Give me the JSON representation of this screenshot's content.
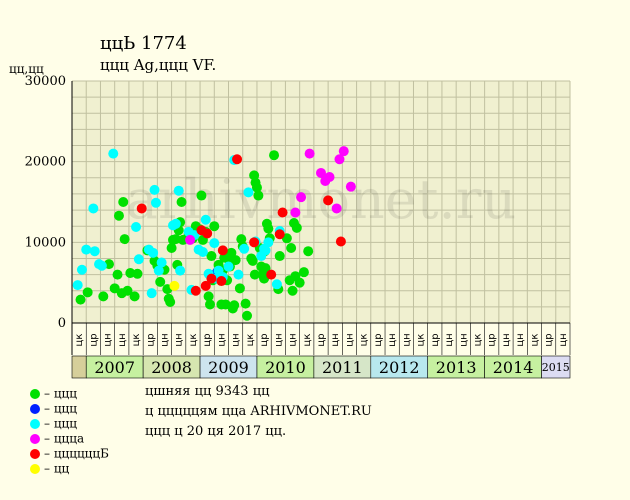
{
  "title": "ццЬ 1774",
  "subtitle": "ццц Ag,ццц VF.",
  "y_unit": "цц,цц",
  "watermark": "arhivmonet.ru",
  "notes": [
    "цшняя цц 9343 цц",
    "ц цццццям ццa ARHIVMONET.RU",
    "ццц ц 20 ця 2017 цц."
  ],
  "legend": [
    {
      "label": "– ццц",
      "color": "#00e000"
    },
    {
      "label": "– ццц",
      "color": "#0020ff"
    },
    {
      "label": "– ццц",
      "color": "#00ffff"
    },
    {
      "label": "– ццца",
      "color": "#ff00ff"
    },
    {
      "label": "– ццццццБ",
      "color": "#ff0000"
    },
    {
      "label": "– цц",
      "color": "#ffff00"
    }
  ],
  "colors": {
    "background": "#fffee8",
    "plot_bg": "#f0f0d0",
    "grid": "#c0c0a0"
  },
  "chart_data": {
    "type": "scatter",
    "title": "ццЬ 1774",
    "ylabel": "цц,цц",
    "ylim": [
      0,
      30000
    ],
    "yticks": [
      0,
      10000,
      20000,
      30000
    ],
    "grid": true,
    "legend_position": "bottom-left",
    "x_tick_labels": [
      "цк",
      "цр",
      "цн",
      "цн",
      "цк",
      "цр",
      "цн",
      "цн",
      "цк",
      "цр",
      "цн",
      "цн",
      "цк",
      "цр",
      "цн",
      "цн",
      "цк",
      "цр",
      "цн",
      "цн",
      "цк",
      "цр",
      "цн",
      "цн",
      "цк",
      "цр",
      "цн",
      "цн",
      "цк",
      "цр",
      "цн",
      "цн",
      "цк",
      "цр",
      "цн"
    ],
    "years": [
      {
        "label": "",
        "start": 0,
        "count": 1,
        "color": "#d6cf9a"
      },
      {
        "label": "2007",
        "start": 1,
        "count": 4,
        "color": "#c6f0a0"
      },
      {
        "label": "2008",
        "start": 5,
        "count": 4,
        "color": "#d6e6b0"
      },
      {
        "label": "2009",
        "start": 9,
        "count": 4,
        "color": "#cde4ee"
      },
      {
        "label": "2010",
        "start": 13,
        "count": 4,
        "color": "#c6f0a0"
      },
      {
        "label": "2011",
        "start": 17,
        "count": 4,
        "color": "#d6e6c8"
      },
      {
        "label": "2012",
        "start": 21,
        "count": 4,
        "color": "#b8e8ee"
      },
      {
        "label": "2013",
        "start": 25,
        "count": 4,
        "color": "#c6f0a0"
      },
      {
        "label": "2014",
        "start": 29,
        "count": 4,
        "color": "#c6f0a0"
      },
      {
        "label": "2015",
        "start": 33,
        "count": 2,
        "color": "#dcdcf2"
      }
    ],
    "series": [
      {
        "key": "green",
        "color": "#00e000",
        "points": [
          [
            0.6,
            2900
          ],
          [
            1.1,
            3800
          ],
          [
            2.2,
            3300
          ],
          [
            2.6,
            7300
          ],
          [
            3.0,
            4300
          ],
          [
            3.2,
            6000
          ],
          [
            3.3,
            13300
          ],
          [
            3.5,
            3700
          ],
          [
            3.6,
            15000
          ],
          [
            3.7,
            10400
          ],
          [
            3.9,
            4000
          ],
          [
            4.1,
            6200
          ],
          [
            4.4,
            3300
          ],
          [
            4.6,
            6100
          ],
          [
            5.3,
            9000
          ],
          [
            5.8,
            7700
          ],
          [
            6.0,
            7100
          ],
          [
            6.2,
            5100
          ],
          [
            6.5,
            6600
          ],
          [
            6.7,
            4200
          ],
          [
            6.8,
            3000
          ],
          [
            6.9,
            2600
          ],
          [
            7.0,
            9300
          ],
          [
            7.1,
            10300
          ],
          [
            7.3,
            10400
          ],
          [
            7.4,
            7200
          ],
          [
            7.5,
            11500
          ],
          [
            7.6,
            12500
          ],
          [
            7.7,
            15000
          ],
          [
            7.8,
            10300
          ],
          [
            8.2,
            11000
          ],
          [
            8.5,
            10500
          ],
          [
            8.7,
            12000
          ],
          [
            9.0,
            11600
          ],
          [
            9.1,
            15800
          ],
          [
            9.2,
            10300
          ],
          [
            9.4,
            11300
          ],
          [
            9.6,
            3300
          ],
          [
            9.7,
            2300
          ],
          [
            9.8,
            8300
          ],
          [
            9.9,
            5300
          ],
          [
            10.0,
            12000
          ],
          [
            10.3,
            7200
          ],
          [
            10.5,
            2300
          ],
          [
            10.6,
            6500
          ],
          [
            10.7,
            8100
          ],
          [
            10.8,
            2300
          ],
          [
            10.9,
            5300
          ],
          [
            11.0,
            7900
          ],
          [
            11.1,
            7000
          ],
          [
            11.2,
            8700
          ],
          [
            11.3,
            1800
          ],
          [
            11.4,
            2200
          ],
          [
            11.5,
            7800
          ],
          [
            11.8,
            4300
          ],
          [
            11.9,
            10400
          ],
          [
            12.0,
            9500
          ],
          [
            12.2,
            2400
          ],
          [
            12.3,
            900
          ],
          [
            12.6,
            8000
          ],
          [
            12.7,
            7700
          ],
          [
            12.8,
            18300
          ],
          [
            12.85,
            6000
          ],
          [
            12.9,
            17400
          ],
          [
            13.0,
            16800
          ],
          [
            13.1,
            15800
          ],
          [
            13.2,
            9300
          ],
          [
            13.3,
            7000
          ],
          [
            13.4,
            6000
          ],
          [
            13.5,
            5500
          ],
          [
            13.55,
            8900
          ],
          [
            13.6,
            6800
          ],
          [
            13.7,
            12300
          ],
          [
            13.8,
            11700
          ],
          [
            13.9,
            10500
          ],
          [
            14.2,
            20800
          ],
          [
            14.5,
            4200
          ],
          [
            14.6,
            8300
          ],
          [
            15.1,
            10500
          ],
          [
            15.3,
            5300
          ],
          [
            15.4,
            9300
          ],
          [
            15.5,
            4000
          ],
          [
            15.6,
            12400
          ],
          [
            15.7,
            5800
          ],
          [
            15.8,
            11800
          ],
          [
            16.0,
            5000
          ],
          [
            16.3,
            6300
          ],
          [
            16.6,
            8900
          ]
        ]
      },
      {
        "key": "blue",
        "color": "#0020ff",
        "points": [
          [
            10.2,
            6300
          ]
        ]
      },
      {
        "key": "cyan",
        "color": "#00ffff",
        "points": [
          [
            0.4,
            4700
          ],
          [
            0.7,
            6600
          ],
          [
            1.0,
            9100
          ],
          [
            1.5,
            14200
          ],
          [
            1.6,
            8900
          ],
          [
            1.9,
            7300
          ],
          [
            2.1,
            7100
          ],
          [
            2.9,
            21000
          ],
          [
            4.5,
            11900
          ],
          [
            4.7,
            7900
          ],
          [
            5.4,
            9100
          ],
          [
            5.6,
            3700
          ],
          [
            5.7,
            8700
          ],
          [
            5.8,
            16500
          ],
          [
            5.9,
            14900
          ],
          [
            6.1,
            6500
          ],
          [
            6.3,
            7500
          ],
          [
            7.1,
            12100
          ],
          [
            7.3,
            12300
          ],
          [
            7.5,
            16400
          ],
          [
            7.6,
            6500
          ],
          [
            8.2,
            11300
          ],
          [
            8.4,
            4100
          ],
          [
            8.6,
            10900
          ],
          [
            8.9,
            9100
          ],
          [
            9.2,
            8800
          ],
          [
            9.4,
            12800
          ],
          [
            9.6,
            6100
          ],
          [
            10.0,
            9900
          ],
          [
            10.1,
            5500
          ],
          [
            10.3,
            6500
          ],
          [
            10.6,
            5700
          ],
          [
            11.0,
            7000
          ],
          [
            11.4,
            20200
          ],
          [
            11.7,
            6000
          ],
          [
            12.1,
            9200
          ],
          [
            12.4,
            16200
          ],
          [
            12.9,
            10100
          ],
          [
            13.3,
            8300
          ],
          [
            13.5,
            9200
          ],
          [
            13.6,
            9000
          ],
          [
            13.8,
            10000
          ],
          [
            14.4,
            4800
          ],
          [
            14.6,
            11400
          ]
        ]
      },
      {
        "key": "magenta",
        "color": "#ff00ff",
        "points": [
          [
            8.3,
            10300
          ],
          [
            15.7,
            13700
          ],
          [
            16.1,
            15600
          ],
          [
            16.7,
            21000
          ],
          [
            17.5,
            18600
          ],
          [
            17.8,
            17600
          ],
          [
            18.1,
            18100
          ],
          [
            18.6,
            14200
          ],
          [
            18.8,
            20300
          ],
          [
            19.1,
            21300
          ],
          [
            19.6,
            16900
          ]
        ]
      },
      {
        "key": "red",
        "color": "#ff0000",
        "points": [
          [
            4.9,
            14200
          ],
          [
            8.7,
            4000
          ],
          [
            9.1,
            11500
          ],
          [
            9.4,
            4600
          ],
          [
            9.5,
            11100
          ],
          [
            9.8,
            5500
          ],
          [
            10.5,
            5200
          ],
          [
            10.6,
            9000
          ],
          [
            11.6,
            20300
          ],
          [
            12.8,
            10000
          ],
          [
            14.0,
            6000
          ],
          [
            14.6,
            11000
          ],
          [
            14.8,
            13700
          ],
          [
            18.0,
            15200
          ],
          [
            18.9,
            10100
          ]
        ]
      },
      {
        "key": "yellow",
        "color": "#ffff00",
        "points": [
          [
            7.2,
            4600
          ]
        ]
      }
    ]
  }
}
